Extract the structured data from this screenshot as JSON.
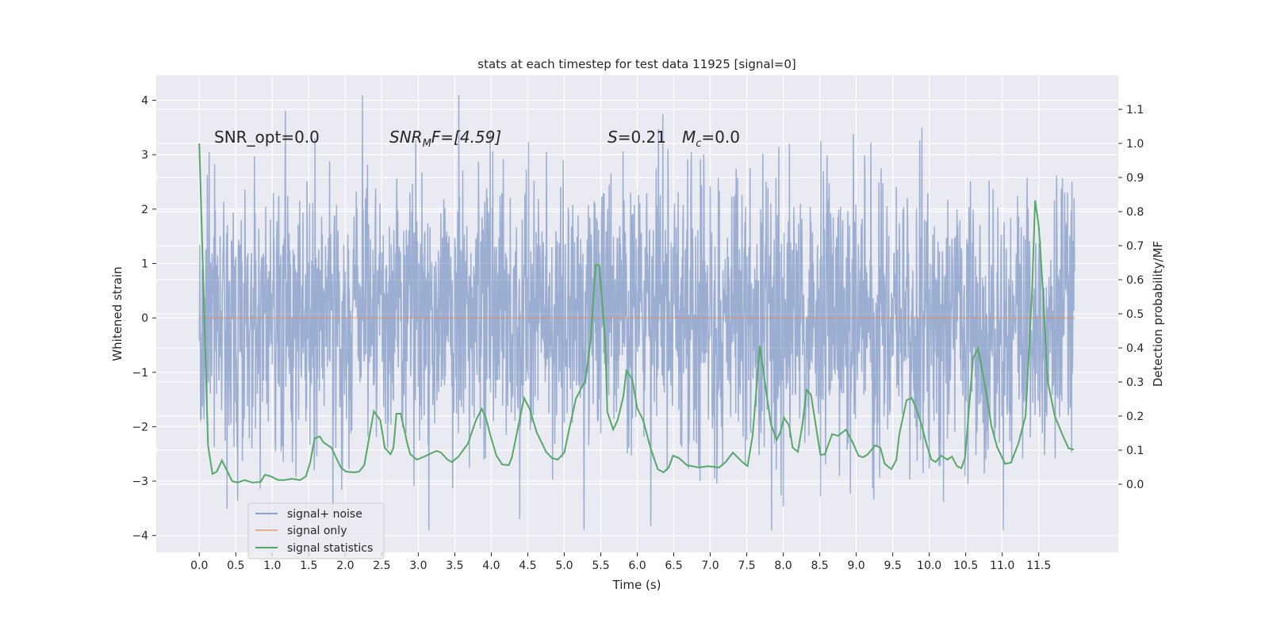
{
  "chart_data": {
    "type": "line",
    "title": "stats at each timestep for test data 11925 [signal=0]",
    "xlabel": "Time (s)",
    "ylabel": "Whitened strain",
    "ylabel_right": "Detection probability/MF",
    "xlim": [
      -0.59,
      12.59
    ],
    "ylim": [
      -4.31,
      4.46
    ],
    "ylim_right": [
      -0.2,
      1.2
    ],
    "x_ticks": [
      "0.0",
      "0.5",
      "1.0",
      "1.5",
      "2.0",
      "2.5",
      "3.0",
      "3.5",
      "4.0",
      "4.5",
      "5.0",
      "5.5",
      "6.0",
      "6.5",
      "7.0",
      "7.5",
      "8.0",
      "8.5",
      "9.0",
      "9.5",
      "10.0",
      "10.5",
      "11.0",
      "11.5"
    ],
    "y_ticks": [
      "−4",
      "−3",
      "−2",
      "−1",
      "0",
      "1",
      "2",
      "3",
      "4"
    ],
    "y_ticks_right": [
      "0.0",
      "0.1",
      "0.2",
      "0.3",
      "0.4",
      "0.5",
      "0.6",
      "0.7",
      "0.8",
      "0.9",
      "1.0",
      "1.1"
    ],
    "grid": true,
    "legend_placement": "lower-left",
    "annotations": {
      "snr_opt": "SNR_opt=0.0",
      "snr_mf_main": "SNR",
      "snr_mf_sub": "M",
      "snr_mf_rest": "F=[4.59]",
      "s_main": "S",
      "s_rest": "=0.21",
      "mc_main": "M",
      "mc_sub": "c",
      "mc_rest": "=0.0"
    },
    "series": [
      {
        "name": "signal+ noise",
        "color": "#4c72b0",
        "axis": "left",
        "t_range": [
          0,
          12
        ],
        "typical_amplitude": 1.35,
        "max": 4.1,
        "min": -3.9
      },
      {
        "name": "signal only",
        "color": "#dd8452",
        "axis": "left",
        "constant": 0
      },
      {
        "name": "signal statistics",
        "color": "#55a868",
        "axis": "right",
        "points": [
          [
            0.0,
            1.0
          ],
          [
            0.12,
            0.114
          ],
          [
            0.18,
            0.03
          ],
          [
            0.24,
            0.037
          ],
          [
            0.31,
            0.07
          ],
          [
            0.45,
            0.009
          ],
          [
            0.52,
            0.005
          ],
          [
            0.62,
            0.012
          ],
          [
            0.73,
            0.005
          ],
          [
            0.84,
            0.007
          ],
          [
            0.9,
            0.028
          ],
          [
            0.98,
            0.023
          ],
          [
            1.08,
            0.012
          ],
          [
            1.16,
            0.012
          ],
          [
            1.27,
            0.016
          ],
          [
            1.38,
            0.012
          ],
          [
            1.46,
            0.023
          ],
          [
            1.52,
            0.065
          ],
          [
            1.58,
            0.135
          ],
          [
            1.65,
            0.14
          ],
          [
            1.7,
            0.123
          ],
          [
            1.81,
            0.107
          ],
          [
            1.94,
            0.049
          ],
          [
            2.01,
            0.037
          ],
          [
            2.12,
            0.035
          ],
          [
            2.19,
            0.037
          ],
          [
            2.26,
            0.056
          ],
          [
            2.33,
            0.14
          ],
          [
            2.39,
            0.214
          ],
          [
            2.48,
            0.188
          ],
          [
            2.54,
            0.107
          ],
          [
            2.62,
            0.088
          ],
          [
            2.66,
            0.107
          ],
          [
            2.7,
            0.207
          ],
          [
            2.76,
            0.207
          ],
          [
            2.85,
            0.119
          ],
          [
            2.89,
            0.088
          ],
          [
            2.98,
            0.072
          ],
          [
            3.08,
            0.081
          ],
          [
            3.25,
            0.098
          ],
          [
            3.31,
            0.093
          ],
          [
            3.4,
            0.072
          ],
          [
            3.46,
            0.065
          ],
          [
            3.55,
            0.081
          ],
          [
            3.68,
            0.119
          ],
          [
            3.79,
            0.188
          ],
          [
            3.87,
            0.221
          ],
          [
            3.92,
            0.198
          ],
          [
            3.99,
            0.142
          ],
          [
            4.07,
            0.084
          ],
          [
            4.15,
            0.058
          ],
          [
            4.24,
            0.056
          ],
          [
            4.28,
            0.077
          ],
          [
            4.33,
            0.128
          ],
          [
            4.42,
            0.223
          ],
          [
            4.45,
            0.253
          ],
          [
            4.53,
            0.219
          ],
          [
            4.62,
            0.153
          ],
          [
            4.75,
            0.095
          ],
          [
            4.83,
            0.077
          ],
          [
            4.91,
            0.072
          ],
          [
            5.0,
            0.093
          ],
          [
            5.08,
            0.174
          ],
          [
            5.16,
            0.251
          ],
          [
            5.23,
            0.281
          ],
          [
            5.29,
            0.305
          ],
          [
            5.36,
            0.421
          ],
          [
            5.43,
            0.644
          ],
          [
            5.48,
            0.642
          ],
          [
            5.56,
            0.421
          ],
          [
            5.59,
            0.212
          ],
          [
            5.67,
            0.16
          ],
          [
            5.73,
            0.188
          ],
          [
            5.81,
            0.258
          ],
          [
            5.85,
            0.333
          ],
          [
            5.93,
            0.309
          ],
          [
            6.0,
            0.223
          ],
          [
            6.08,
            0.188
          ],
          [
            6.18,
            0.107
          ],
          [
            6.28,
            0.044
          ],
          [
            6.36,
            0.035
          ],
          [
            6.43,
            0.049
          ],
          [
            6.49,
            0.084
          ],
          [
            6.57,
            0.077
          ],
          [
            6.68,
            0.056
          ],
          [
            6.84,
            0.049
          ],
          [
            6.97,
            0.053
          ],
          [
            7.12,
            0.049
          ],
          [
            7.21,
            0.065
          ],
          [
            7.31,
            0.093
          ],
          [
            7.45,
            0.063
          ],
          [
            7.51,
            0.053
          ],
          [
            7.58,
            0.142
          ],
          [
            7.68,
            0.405
          ],
          [
            7.76,
            0.281
          ],
          [
            7.83,
            0.177
          ],
          [
            7.91,
            0.13
          ],
          [
            7.96,
            0.153
          ],
          [
            8.01,
            0.195
          ],
          [
            8.08,
            0.172
          ],
          [
            8.13,
            0.107
          ],
          [
            8.2,
            0.095
          ],
          [
            8.26,
            0.172
          ],
          [
            8.32,
            0.277
          ],
          [
            8.38,
            0.263
          ],
          [
            8.46,
            0.153
          ],
          [
            8.51,
            0.086
          ],
          [
            8.57,
            0.088
          ],
          [
            8.67,
            0.147
          ],
          [
            8.75,
            0.142
          ],
          [
            8.86,
            0.16
          ],
          [
            8.95,
            0.123
          ],
          [
            9.03,
            0.084
          ],
          [
            9.09,
            0.079
          ],
          [
            9.15,
            0.086
          ],
          [
            9.26,
            0.114
          ],
          [
            9.33,
            0.107
          ],
          [
            9.39,
            0.06
          ],
          [
            9.48,
            0.044
          ],
          [
            9.55,
            0.072
          ],
          [
            9.59,
            0.147
          ],
          [
            9.69,
            0.247
          ],
          [
            9.76,
            0.253
          ],
          [
            9.82,
            0.223
          ],
          [
            9.88,
            0.184
          ],
          [
            9.97,
            0.112
          ],
          [
            10.03,
            0.072
          ],
          [
            10.09,
            0.065
          ],
          [
            10.16,
            0.084
          ],
          [
            10.25,
            0.072
          ],
          [
            10.31,
            0.081
          ],
          [
            10.38,
            0.053
          ],
          [
            10.44,
            0.047
          ],
          [
            10.49,
            0.077
          ],
          [
            10.6,
            0.37
          ],
          [
            10.67,
            0.398
          ],
          [
            10.78,
            0.27
          ],
          [
            10.85,
            0.172
          ],
          [
            10.93,
            0.109
          ],
          [
            11.04,
            0.06
          ],
          [
            11.12,
            0.063
          ],
          [
            11.22,
            0.119
          ],
          [
            11.32,
            0.2
          ],
          [
            11.41,
            0.572
          ],
          [
            11.45,
            0.833
          ],
          [
            11.5,
            0.758
          ],
          [
            11.56,
            0.56
          ],
          [
            11.62,
            0.305
          ],
          [
            11.72,
            0.2
          ],
          [
            11.83,
            0.142
          ],
          [
            11.91,
            0.105
          ],
          [
            11.98,
            0.102
          ]
        ]
      }
    ]
  },
  "colors": {
    "background": "#eaeaf2",
    "grid": "#ffffff"
  }
}
